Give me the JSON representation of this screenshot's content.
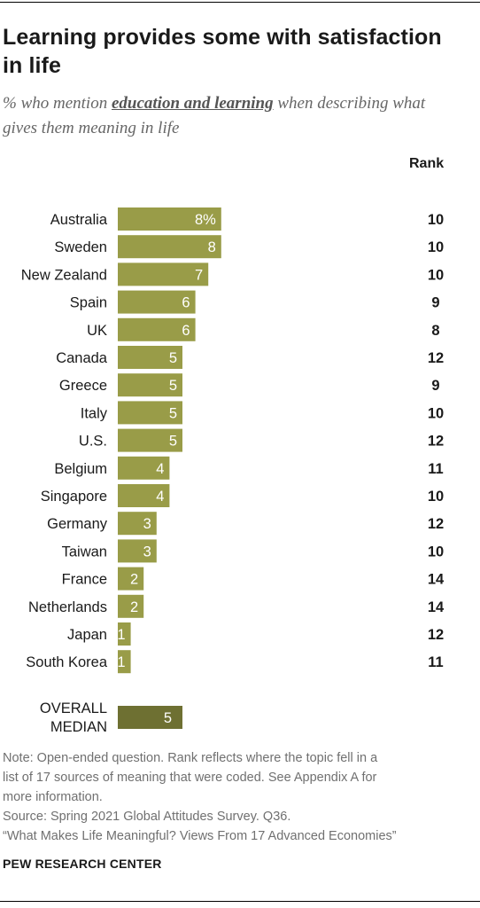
{
  "title": "Learning provides some with satisfaction in life",
  "subtitle": {
    "prefix": "% who mention ",
    "topic": "education and learning",
    "suffix": " when describing what gives them meaning in life"
  },
  "rank_header": "Rank",
  "colors": {
    "bar": "#999c48",
    "median_bar": "#6e7032",
    "bar_label": "#ffffff"
  },
  "chart_data": {
    "type": "bar",
    "orientation": "horizontal",
    "categories": [
      "Australia",
      "Sweden",
      "New Zealand",
      "Spain",
      "UK",
      "Canada",
      "Greece",
      "Italy",
      "U.S.",
      "Belgium",
      "Singapore",
      "Germany",
      "Taiwan",
      "France",
      "Netherlands",
      "Japan",
      "South Korea"
    ],
    "values": [
      8,
      8,
      7,
      6,
      6,
      5,
      5,
      5,
      5,
      4,
      4,
      3,
      3,
      2,
      2,
      1,
      1
    ],
    "value_labels": [
      "8%",
      "8",
      "7",
      "6",
      "6",
      "5",
      "5",
      "5",
      "5",
      "4",
      "4",
      "3",
      "3",
      "2",
      "2",
      "1",
      "1"
    ],
    "ranks": [
      "10",
      "10",
      "10",
      "9",
      "8",
      "12",
      "9",
      "10",
      "12",
      "11",
      "10",
      "12",
      "10",
      "14",
      "14",
      "12",
      "11"
    ],
    "median": {
      "label_lines": [
        "OVERALL",
        "MEDIAN"
      ],
      "value": 5,
      "value_label": "5"
    },
    "xlim": [
      0,
      8
    ],
    "grid": false,
    "legend": "none"
  },
  "note": {
    "line1": "Note: Open-ended question. Rank reflects where the topic fell in a",
    "line2": "list of 17 sources of meaning that were coded. See Appendix A for",
    "line3": "more information.",
    "source": "Source: Spring 2021 Global Attitudes Survey. Q36.",
    "report": "“What Makes Life Meaningful? Views From 17 Advanced Economies”"
  },
  "brand": "PEW RESEARCH CENTER"
}
